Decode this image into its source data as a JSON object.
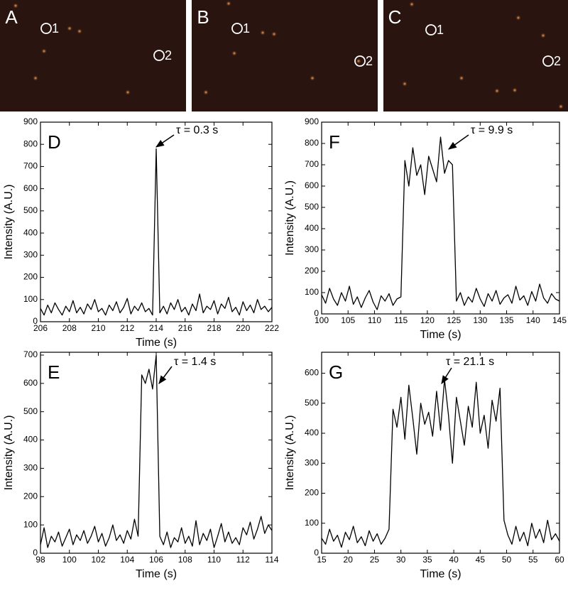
{
  "image_panels": [
    {
      "label": "A",
      "markers": [
        "1",
        "2"
      ]
    },
    {
      "label": "B",
      "markers": [
        "1",
        "2"
      ]
    },
    {
      "label": "C",
      "markers": [
        "1",
        "2"
      ]
    }
  ],
  "chart_data": [
    {
      "type": "line",
      "label": "D",
      "annotation": "τ = 0.3 s",
      "xlabel": "Time (s)",
      "ylabel": "Intensity (A.U.)",
      "color": "#000000",
      "xlim": [
        206,
        222
      ],
      "xticks": [
        206,
        208,
        210,
        212,
        214,
        216,
        218,
        220,
        222
      ],
      "ylim": [
        0,
        900
      ],
      "yticks": [
        0,
        100,
        200,
        300,
        400,
        500,
        600,
        700,
        800,
        900
      ],
      "x": [
        206,
        206.25,
        206.5,
        206.75,
        207,
        207.25,
        207.5,
        207.75,
        208,
        208.25,
        208.5,
        208.75,
        209,
        209.25,
        209.5,
        209.75,
        210,
        210.25,
        210.5,
        210.75,
        211,
        211.25,
        211.5,
        211.75,
        212,
        212.25,
        212.5,
        212.75,
        213,
        213.25,
        213.5,
        213.75,
        214,
        214.25,
        214.5,
        214.75,
        215,
        215.25,
        215.5,
        215.75,
        216,
        216.25,
        216.5,
        216.75,
        217,
        217.25,
        217.5,
        217.75,
        218,
        218.25,
        218.5,
        218.75,
        219,
        219.25,
        219.5,
        219.75,
        220,
        220.25,
        220.5,
        220.75,
        221,
        221.25,
        221.5,
        221.75,
        222
      ],
      "values": [
        60,
        30,
        75,
        40,
        85,
        55,
        30,
        70,
        45,
        95,
        40,
        65,
        35,
        80,
        55,
        100,
        45,
        60,
        30,
        75,
        50,
        90,
        40,
        65,
        105,
        35,
        70,
        50,
        85,
        45,
        60,
        30,
        780,
        40,
        70,
        35,
        85,
        55,
        100,
        45,
        65,
        30,
        80,
        50,
        125,
        40,
        70,
        55,
        95,
        35,
        80,
        60,
        110,
        45,
        65,
        30,
        90,
        50,
        75,
        40,
        100,
        55,
        70,
        45,
        65
      ]
    },
    {
      "type": "line",
      "label": "E",
      "annotation": "τ = 1.4 s",
      "xlabel": "Time (s)",
      "ylabel": "Intensity (A.U.)",
      "color": "#000000",
      "xlim": [
        98,
        114
      ],
      "xticks": [
        98,
        100,
        102,
        104,
        106,
        108,
        110,
        112,
        114
      ],
      "ylim": [
        0,
        710
      ],
      "yticks": [
        0,
        100,
        200,
        300,
        400,
        500,
        600,
        700
      ],
      "x": [
        98,
        98.25,
        98.5,
        98.75,
        99,
        99.25,
        99.5,
        99.75,
        100,
        100.25,
        100.5,
        100.75,
        101,
        101.25,
        101.5,
        101.75,
        102,
        102.25,
        102.5,
        102.75,
        103,
        103.25,
        103.5,
        103.75,
        104,
        104.25,
        104.5,
        104.75,
        105,
        105.25,
        105.5,
        105.75,
        106,
        106.25,
        106.5,
        106.75,
        107,
        107.25,
        107.5,
        107.75,
        108,
        108.25,
        108.5,
        108.75,
        109,
        109.25,
        109.5,
        109.75,
        110,
        110.25,
        110.5,
        110.75,
        111,
        111.25,
        111.5,
        111.75,
        112,
        112.25,
        112.5,
        112.75,
        113,
        113.25,
        113.5,
        113.75,
        114
      ],
      "values": [
        30,
        90,
        20,
        60,
        40,
        75,
        25,
        55,
        85,
        30,
        65,
        45,
        80,
        35,
        60,
        95,
        40,
        70,
        25,
        55,
        100,
        45,
        65,
        35,
        80,
        50,
        120,
        60,
        630,
        600,
        650,
        580,
        700,
        60,
        30,
        75,
        20,
        55,
        40,
        90,
        35,
        60,
        25,
        115,
        30,
        70,
        45,
        85,
        20,
        60,
        105,
        40,
        75,
        35,
        55,
        30,
        90,
        65,
        110,
        50,
        85,
        130,
        70,
        100,
        80
      ]
    },
    {
      "type": "line",
      "label": "F",
      "annotation": "τ = 9.9 s",
      "xlabel": "Time (s)",
      "ylabel": "Intensity (A.U.)",
      "color": "#000000",
      "xlim": [
        100,
        145
      ],
      "xticks": [
        100,
        105,
        110,
        115,
        120,
        125,
        130,
        135,
        140,
        145
      ],
      "ylim": [
        0,
        900
      ],
      "yticks": [
        0,
        100,
        200,
        300,
        400,
        500,
        600,
        700,
        800,
        900
      ],
      "x": [
        100,
        100.75,
        101.5,
        102.25,
        103,
        103.75,
        104.5,
        105.25,
        106,
        106.75,
        107.5,
        108.25,
        109,
        109.75,
        110.5,
        111.25,
        112,
        112.75,
        113.5,
        114.25,
        115,
        115.75,
        116.5,
        117.25,
        118,
        118.75,
        119.5,
        120.25,
        121,
        121.75,
        122.5,
        123.25,
        124,
        124.75,
        125.5,
        126.25,
        127,
        127.75,
        128.5,
        129.25,
        130,
        130.75,
        131.5,
        132.25,
        133,
        133.75,
        134.5,
        135.25,
        136,
        136.75,
        137.5,
        138.25,
        139,
        139.75,
        140.5,
        141.25,
        142,
        142.75,
        143.5,
        144.25,
        145
      ],
      "values": [
        90,
        50,
        120,
        70,
        40,
        100,
        60,
        130,
        45,
        80,
        30,
        75,
        110,
        55,
        20,
        85,
        60,
        95,
        40,
        70,
        80,
        720,
        600,
        780,
        650,
        700,
        560,
        740,
        680,
        620,
        830,
        660,
        720,
        700,
        60,
        100,
        40,
        80,
        55,
        120,
        70,
        35,
        95,
        60,
        110,
        45,
        75,
        90,
        50,
        130,
        65,
        85,
        40,
        105,
        60,
        140,
        75,
        50,
        95,
        70,
        60
      ]
    },
    {
      "type": "line",
      "label": "G",
      "annotation": "τ = 21.1 s",
      "xlabel": "Time (s)",
      "ylabel": "Intensity (A.U.)",
      "color": "#000000",
      "xlim": [
        15,
        60
      ],
      "xticks": [
        15,
        20,
        25,
        30,
        35,
        40,
        45,
        50,
        55,
        60
      ],
      "ylim": [
        0,
        670
      ],
      "yticks": [
        0,
        100,
        200,
        300,
        400,
        500,
        600
      ],
      "x": [
        15,
        15.75,
        16.5,
        17.25,
        18,
        18.75,
        19.5,
        20.25,
        21,
        21.75,
        22.5,
        23.25,
        24,
        24.75,
        25.5,
        26.25,
        27,
        27.75,
        28.5,
        29.25,
        30,
        30.75,
        31.5,
        32.25,
        33,
        33.75,
        34.5,
        35.25,
        36,
        36.75,
        37.5,
        38.25,
        39,
        39.75,
        40.5,
        41.25,
        42,
        42.75,
        43.5,
        44.25,
        45,
        45.75,
        46.5,
        47.25,
        48,
        48.75,
        49.5,
        50.25,
        51,
        51.75,
        52.5,
        53.25,
        54,
        54.75,
        55.5,
        56.25,
        57,
        57.75,
        58.5,
        59.25,
        60
      ],
      "values": [
        50,
        30,
        80,
        40,
        60,
        20,
        70,
        45,
        90,
        35,
        55,
        25,
        75,
        40,
        65,
        30,
        50,
        80,
        480,
        420,
        520,
        380,
        560,
        450,
        330,
        500,
        430,
        470,
        390,
        540,
        410,
        580,
        460,
        300,
        520,
        440,
        360,
        490,
        420,
        570,
        400,
        460,
        350,
        510,
        440,
        550,
        110,
        60,
        30,
        90,
        40,
        70,
        25,
        100,
        50,
        80,
        35,
        110,
        45,
        65,
        40
      ]
    }
  ]
}
